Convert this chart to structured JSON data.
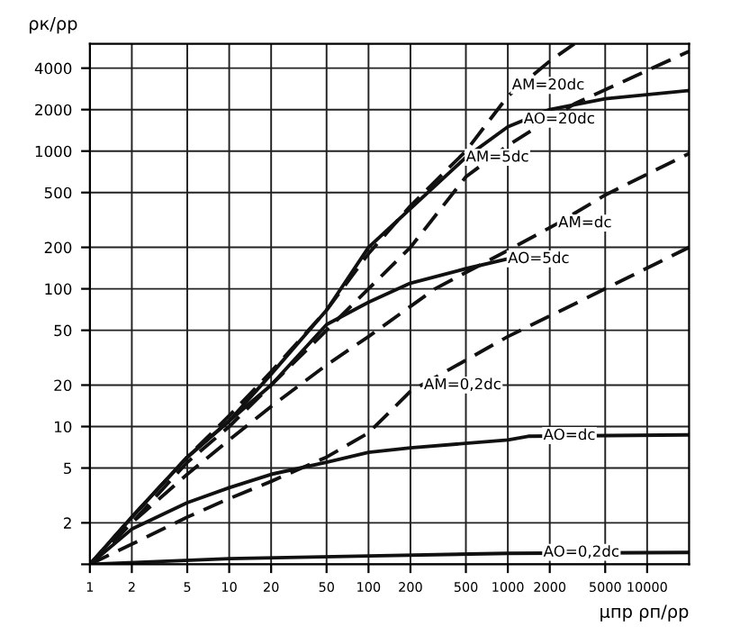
{
  "chart_data": {
    "type": "line",
    "ylabel": "ρк/ρр",
    "xlabel": "μпр ρп/ρр",
    "log": "xy",
    "grid": true,
    "marker": "none",
    "xlim": [
      1,
      20000
    ],
    "xticks": [
      1,
      2,
      5,
      10,
      20,
      50,
      100,
      200,
      500,
      1000,
      2000,
      5000,
      10000
    ],
    "ylim": [
      1,
      6000
    ],
    "yticks": [
      {
        "value": 1,
        "label": null
      },
      2,
      5,
      10,
      20,
      50,
      100,
      200,
      500,
      1000,
      2000,
      4000
    ],
    "series": [
      {
        "color": "#111111",
        "line_style": "dashed",
        "x": [
          1,
          2,
          5,
          10,
          20,
          50,
          100,
          200,
          500,
          1000,
          2000,
          3000
        ],
        "values": [
          1,
          2.2,
          6,
          12,
          25,
          70,
          180,
          400,
          1000,
          2500,
          4500,
          6000
        ]
      },
      {
        "color": "#111111",
        "line_style": "solid",
        "x": [
          1,
          2,
          5,
          10,
          20,
          50,
          100,
          500,
          1000,
          2000,
          5000,
          20000
        ],
        "values": [
          1,
          2.2,
          6,
          11,
          24,
          70,
          200,
          900,
          1500,
          2000,
          2400,
          2750
        ]
      },
      {
        "color": "#111111",
        "line_style": "dashed",
        "x": [
          1,
          2,
          5,
          10,
          20,
          50,
          100,
          200,
          500,
          1000,
          3000,
          20000
        ],
        "values": [
          1,
          2,
          5.5,
          10,
          20,
          50,
          100,
          200,
          650,
          1100,
          2200,
          5300
        ]
      },
      {
        "color": "#111111",
        "line_style": "dashed",
        "x": [
          1,
          2,
          5,
          10,
          20,
          50,
          100,
          300,
          1000,
          2300,
          5000,
          20000
        ],
        "values": [
          1,
          2,
          4.5,
          8,
          14,
          28,
          45,
          100,
          190,
          300,
          480,
          960
        ]
      },
      {
        "color": "#111111",
        "line_style": "solid",
        "x": [
          1,
          2,
          5,
          10,
          20,
          50,
          100,
          200,
          500,
          1000
        ],
        "values": [
          1,
          2.2,
          6,
          11,
          20,
          55,
          80,
          110,
          140,
          165
        ]
      },
      {
        "color": "#111111",
        "line_style": "dashed",
        "x": [
          1,
          2,
          5,
          10,
          20,
          50,
          100,
          200,
          1000,
          5000,
          20000
        ],
        "values": [
          1,
          1.4,
          2.2,
          3,
          4,
          6,
          9,
          18,
          45,
          100,
          200
        ]
      },
      {
        "color": "#111111",
        "line_style": "solid",
        "x": [
          1,
          2,
          5,
          10,
          20,
          50,
          100,
          200,
          1000,
          1400,
          20000
        ],
        "values": [
          1,
          1.8,
          2.8,
          3.6,
          4.5,
          5.5,
          6.5,
          7,
          8,
          8.5,
          8.7
        ]
      },
      {
        "color": "#111111",
        "line_style": "solid",
        "x": [
          1,
          10,
          100,
          1000,
          20000
        ],
        "values": [
          1,
          1.1,
          1.15,
          1.2,
          1.22
        ]
      }
    ],
    "annotations": [
      {
        "text": "AM=20dc",
        "x": 1070,
        "y": 3000
      },
      {
        "text": "AO=20dc",
        "x": 1300,
        "y": 1700
      },
      {
        "text": "AM=5dc",
        "x": 500,
        "y": 900
      },
      {
        "text": "AM=dc",
        "x": 2300,
        "y": 300
      },
      {
        "text": "AO=5dc",
        "x": 1000,
        "y": 165
      },
      {
        "text": "AM=0,2dc",
        "x": 250,
        "y": 20
      },
      {
        "text": "AO=dc",
        "x": 1800,
        "y": 8.6
      },
      {
        "text": "AO=0,2dc",
        "x": 1800,
        "y": 1.22
      }
    ]
  }
}
